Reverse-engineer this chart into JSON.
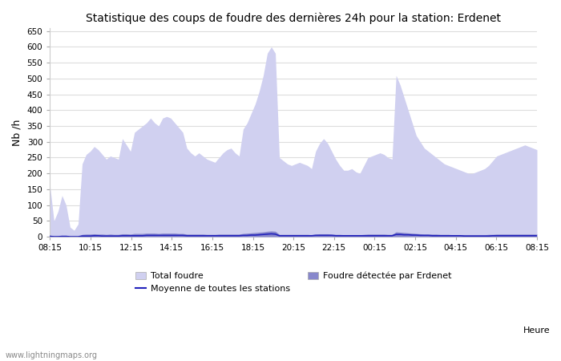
{
  "title": "Statistique des coups de foudre des dernières 24h pour la station: Erdenet",
  "ylabel": "Nb /h",
  "xlabel_right": "Heure",
  "watermark": "www.lightningmaps.org",
  "yticks": [
    0,
    50,
    100,
    150,
    200,
    250,
    300,
    350,
    400,
    450,
    500,
    550,
    600,
    650
  ],
  "ylim": [
    0,
    660
  ],
  "xtick_labels": [
    "08:15",
    "10:15",
    "12:15",
    "14:15",
    "16:15",
    "18:15",
    "20:15",
    "22:15",
    "00:15",
    "02:15",
    "04:15",
    "06:15",
    "08:15"
  ],
  "bg_color": "#ffffff",
  "grid_color": "#dddddd",
  "total_foudre_color": "#d0d0f0",
  "detected_color": "#8888cc",
  "mean_line_color": "#2222bb",
  "legend_labels": [
    "Total foudre",
    "Moyenne de toutes les stations",
    "Foudre détectée par Erdenet"
  ],
  "total_foudre_data": [
    160,
    50,
    80,
    130,
    100,
    30,
    20,
    40,
    230,
    260,
    270,
    285,
    275,
    260,
    245,
    255,
    250,
    245,
    310,
    290,
    270,
    330,
    340,
    350,
    360,
    375,
    360,
    350,
    375,
    380,
    375,
    360,
    345,
    330,
    280,
    265,
    255,
    265,
    255,
    245,
    240,
    235,
    250,
    265,
    275,
    280,
    265,
    255,
    340,
    360,
    390,
    420,
    460,
    510,
    580,
    600,
    580,
    250,
    240,
    230,
    225,
    230,
    235,
    230,
    225,
    215,
    270,
    295,
    310,
    295,
    270,
    245,
    225,
    210,
    210,
    215,
    205,
    200,
    225,
    250,
    255,
    260,
    265,
    260,
    250,
    245,
    510,
    480,
    440,
    400,
    360,
    320,
    300,
    280,
    270,
    260,
    250,
    240,
    230,
    225,
    220,
    215,
    210,
    205,
    200,
    200,
    205,
    210,
    215,
    225,
    240,
    255,
    260,
    265,
    270,
    275,
    280,
    285,
    290,
    285,
    280,
    275
  ],
  "detected_foudre_data": [
    5,
    2,
    3,
    4,
    3,
    1,
    1,
    1,
    7,
    8,
    8,
    9,
    8,
    8,
    7,
    8,
    7,
    7,
    9,
    9,
    8,
    10,
    10,
    10,
    11,
    11,
    11,
    10,
    11,
    11,
    11,
    11,
    10,
    10,
    8,
    8,
    8,
    8,
    8,
    7,
    7,
    7,
    8,
    8,
    8,
    8,
    8,
    8,
    10,
    11,
    12,
    13,
    14,
    15,
    17,
    18,
    17,
    7,
    7,
    7,
    7,
    7,
    7,
    7,
    7,
    6,
    8,
    9,
    9,
    9,
    8,
    7,
    7,
    6,
    6,
    6,
    6,
    6,
    7,
    8,
    8,
    8,
    8,
    8,
    7,
    7,
    15,
    14,
    13,
    12,
    11,
    10,
    9,
    8,
    8,
    8,
    8,
    7,
    7,
    7,
    6,
    6,
    6,
    6,
    6,
    6,
    6,
    6,
    6,
    7,
    7,
    8,
    8,
    8,
    8,
    8,
    8,
    8,
    8,
    8,
    8,
    8
  ],
  "mean_line_data": [
    1,
    0,
    0,
    1,
    1,
    0,
    0,
    0,
    2,
    2,
    2,
    3,
    3,
    2,
    2,
    2,
    2,
    2,
    3,
    3,
    3,
    3,
    3,
    3,
    4,
    4,
    4,
    4,
    4,
    4,
    4,
    4,
    4,
    4,
    3,
    3,
    3,
    3,
    3,
    3,
    3,
    3,
    3,
    3,
    3,
    3,
    3,
    3,
    4,
    4,
    5,
    5,
    6,
    7,
    8,
    9,
    8,
    3,
    3,
    3,
    3,
    3,
    3,
    3,
    3,
    3,
    4,
    4,
    4,
    4,
    4,
    3,
    3,
    3,
    3,
    3,
    3,
    3,
    3,
    3,
    3,
    3,
    3,
    3,
    3,
    3,
    7,
    7,
    6,
    6,
    5,
    5,
    4,
    4,
    4,
    3,
    3,
    3,
    3,
    3,
    3,
    3,
    3,
    2,
    2,
    2,
    2,
    2,
    2,
    2,
    3,
    3,
    3,
    3,
    3,
    3,
    3,
    3,
    3,
    3,
    3,
    3
  ],
  "figsize": [
    7.0,
    4.5
  ],
  "dpi": 100
}
